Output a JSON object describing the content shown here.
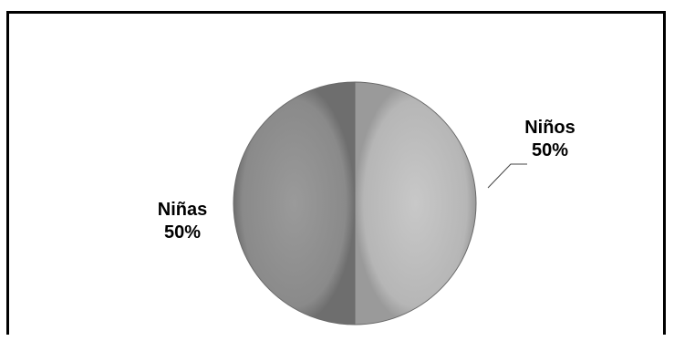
{
  "chart_data": {
    "type": "pie",
    "title": "",
    "legend": "none",
    "slices": [
      {
        "name": "Niños",
        "value": 50,
        "label": "50%",
        "color": "#b4b4b4"
      },
      {
        "name": "Niñas",
        "value": 50,
        "label": "50%",
        "color": "#8c8c8c"
      }
    ]
  }
}
